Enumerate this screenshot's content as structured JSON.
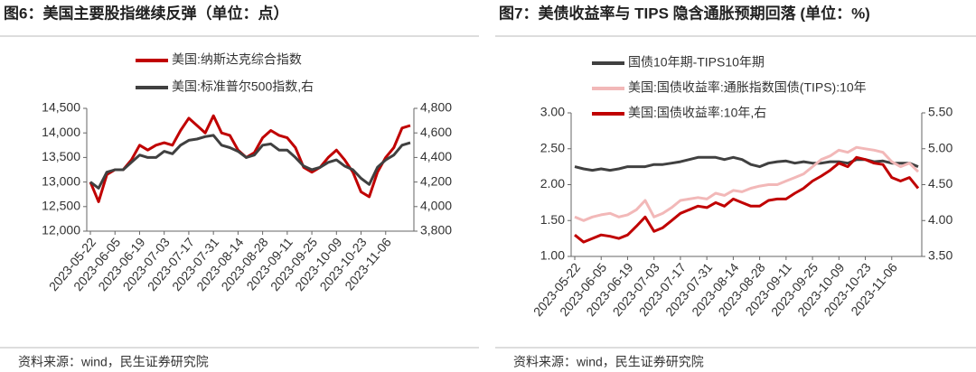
{
  "chart_data": [
    {
      "type": "line",
      "title": "图6：美国主要股指继续反弹（单位：点）",
      "source": "资料来源：wind，民生证券研究院",
      "legend": "top",
      "categories": [
        "2023-05-22",
        null,
        null,
        "2023-06-05",
        null,
        null,
        "2023-06-19",
        null,
        null,
        "2023-07-03",
        null,
        null,
        "2023-07-17",
        null,
        null,
        "2023-07-31",
        null,
        null,
        "2023-08-14",
        null,
        null,
        "2023-08-28",
        null,
        null,
        "2023-09-11",
        null,
        null,
        "2023-09-25",
        null,
        null,
        "2023-10-09",
        null,
        null,
        "2023-10-23",
        null,
        null,
        "2023-11-06",
        null,
        null,
        null
      ],
      "ylim": [
        12000,
        14500
      ],
      "yticks": [
        {
          "value": 12000,
          "label": "12,000"
        },
        {
          "value": 12500,
          "label": "12,500"
        },
        {
          "value": 13000,
          "label": "13,000"
        },
        {
          "value": 13500,
          "label": "13,500"
        },
        {
          "value": 14000,
          "label": "14,000"
        },
        {
          "value": 14500,
          "label": "14,500"
        }
      ],
      "y2lim": [
        3800,
        4800
      ],
      "y2ticks": [
        {
          "value": 3800,
          "label": "3,800"
        },
        {
          "value": 4000,
          "label": "4,000"
        },
        {
          "value": 4200,
          "label": "4,200"
        },
        {
          "value": 4400,
          "label": "4,400"
        },
        {
          "value": 4600,
          "label": "4,600"
        },
        {
          "value": 4800,
          "label": "4,800"
        }
      ],
      "series": [
        {
          "name": "美国:纳斯达克综合指数",
          "color": "#c00000",
          "values": [
            13000,
            12600,
            13150,
            13250,
            13250,
            13450,
            13750,
            13650,
            13750,
            13800,
            13750,
            14050,
            14300,
            14150,
            14000,
            14350,
            14000,
            13950,
            13650,
            13500,
            13600,
            13900,
            14050,
            13950,
            13900,
            13700,
            13300,
            13200,
            13300,
            13500,
            13650,
            13450,
            13200,
            12800,
            12700,
            13200,
            13500,
            13700,
            14100,
            14150
          ]
        },
        {
          "name": "美国:标准普尔500指数,右",
          "color": "#404040",
          "axis": "y2",
          "values": [
            4200,
            4150,
            4280,
            4300,
            4300,
            4360,
            4420,
            4400,
            4400,
            4450,
            4430,
            4500,
            4540,
            4550,
            4570,
            4580,
            4500,
            4480,
            4450,
            4400,
            4420,
            4500,
            4510,
            4460,
            4460,
            4400,
            4330,
            4300,
            4320,
            4360,
            4380,
            4330,
            4300,
            4230,
            4180,
            4320,
            4380,
            4420,
            4500,
            4520
          ]
        }
      ]
    },
    {
      "type": "line",
      "title": "图7：美债收益率与 TIPS 隐含通胀预期回落 (单位：%)",
      "source": "资料来源：wind，民生证券研究院",
      "legend": "top-left",
      "categories": [
        "2023-05-22",
        null,
        null,
        "2023-06-05",
        null,
        null,
        "2023-06-19",
        null,
        null,
        "2023-07-03",
        null,
        null,
        "2023-07-17",
        null,
        null,
        "2023-07-31",
        null,
        null,
        "2023-08-14",
        null,
        null,
        "2023-08-28",
        null,
        null,
        "2023-09-11",
        null,
        null,
        "2023-09-25",
        null,
        null,
        "2023-10-09",
        null,
        null,
        "2023-10-23",
        null,
        null,
        "2023-11-06",
        null,
        null,
        null
      ],
      "ylim": [
        1,
        3
      ],
      "yticks": [
        {
          "value": 1,
          "label": "1.00"
        },
        {
          "value": 1.5,
          "label": "1.50"
        },
        {
          "value": 2,
          "label": "2.00"
        },
        {
          "value": 2.5,
          "label": "2.50"
        },
        {
          "value": 3,
          "label": "3.00"
        }
      ],
      "y2lim": [
        3.5,
        5.5
      ],
      "y2ticks": [
        {
          "value": 3.5,
          "label": "3.50"
        },
        {
          "value": 4,
          "label": "4.00"
        },
        {
          "value": 4.5,
          "label": "4.50"
        },
        {
          "value": 5,
          "label": "5.00"
        },
        {
          "value": 5.5,
          "label": "5.50"
        }
      ],
      "series": [
        {
          "name": "国债10年期-TIPS10年期",
          "color": "#404040",
          "values": [
            2.25,
            2.22,
            2.2,
            2.22,
            2.2,
            2.22,
            2.25,
            2.25,
            2.25,
            2.28,
            2.28,
            2.3,
            2.32,
            2.35,
            2.38,
            2.38,
            2.38,
            2.35,
            2.38,
            2.35,
            2.28,
            2.25,
            2.3,
            2.32,
            2.33,
            2.3,
            2.32,
            2.3,
            2.3,
            2.32,
            2.32,
            2.3,
            2.35,
            2.35,
            2.32,
            2.33,
            2.3,
            2.3,
            2.3,
            2.25
          ]
        },
        {
          "name": "美国:国债收益率:通胀指数国债(TIPS):10年",
          "color": "#f2b8b8",
          "values": [
            1.55,
            1.5,
            1.55,
            1.58,
            1.6,
            1.55,
            1.58,
            1.65,
            1.78,
            1.55,
            1.6,
            1.68,
            1.78,
            1.8,
            1.82,
            1.8,
            1.88,
            1.85,
            1.92,
            1.9,
            1.95,
            1.98,
            2,
            2,
            2.05,
            2.1,
            2.15,
            2.25,
            2.35,
            2.4,
            2.48,
            2.45,
            2.52,
            2.5,
            2.48,
            2.45,
            2.32,
            2.25,
            2.3,
            2.18
          ]
        },
        {
          "name": "美国:国债收益率:10年,右",
          "color": "#c00000",
          "axis": "y2",
          "values": [
            3.8,
            3.7,
            3.75,
            3.8,
            3.78,
            3.75,
            3.8,
            3.92,
            4.05,
            3.85,
            3.9,
            4,
            4.1,
            4.15,
            4.2,
            4.18,
            4.25,
            4.2,
            4.3,
            4.25,
            4.2,
            4.2,
            4.28,
            4.3,
            4.3,
            4.38,
            4.45,
            4.55,
            4.62,
            4.7,
            4.8,
            4.75,
            4.88,
            4.85,
            4.8,
            4.78,
            4.6,
            4.55,
            4.6,
            4.45
          ]
        }
      ]
    }
  ]
}
